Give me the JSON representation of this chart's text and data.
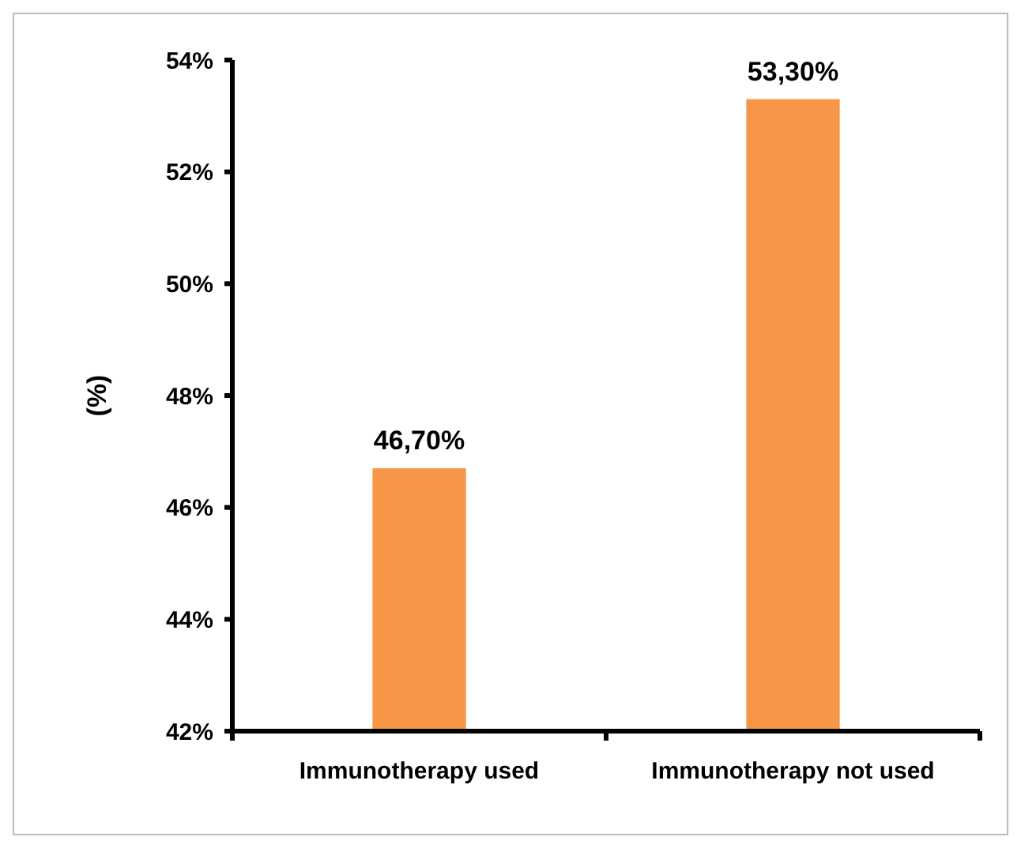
{
  "chart_data": {
    "type": "bar",
    "ylabel": "(%)",
    "categories": [
      "Immunotherapy used",
      "Immunotherapy not used"
    ],
    "values": [
      46.7,
      53.3
    ],
    "value_labels": [
      "46,70%",
      "53,30%"
    ],
    "color": "#f79646",
    "ylim": [
      42,
      54
    ],
    "yticks": [
      {
        "value": 42,
        "label": "42%"
      },
      {
        "value": 44,
        "label": "44%"
      },
      {
        "value": 46,
        "label": "46%"
      },
      {
        "value": 48,
        "label": "48%"
      },
      {
        "value": 50,
        "label": "50%"
      },
      {
        "value": 52,
        "label": "52%"
      },
      {
        "value": 54,
        "label": "54%"
      }
    ],
    "grid": false
  }
}
